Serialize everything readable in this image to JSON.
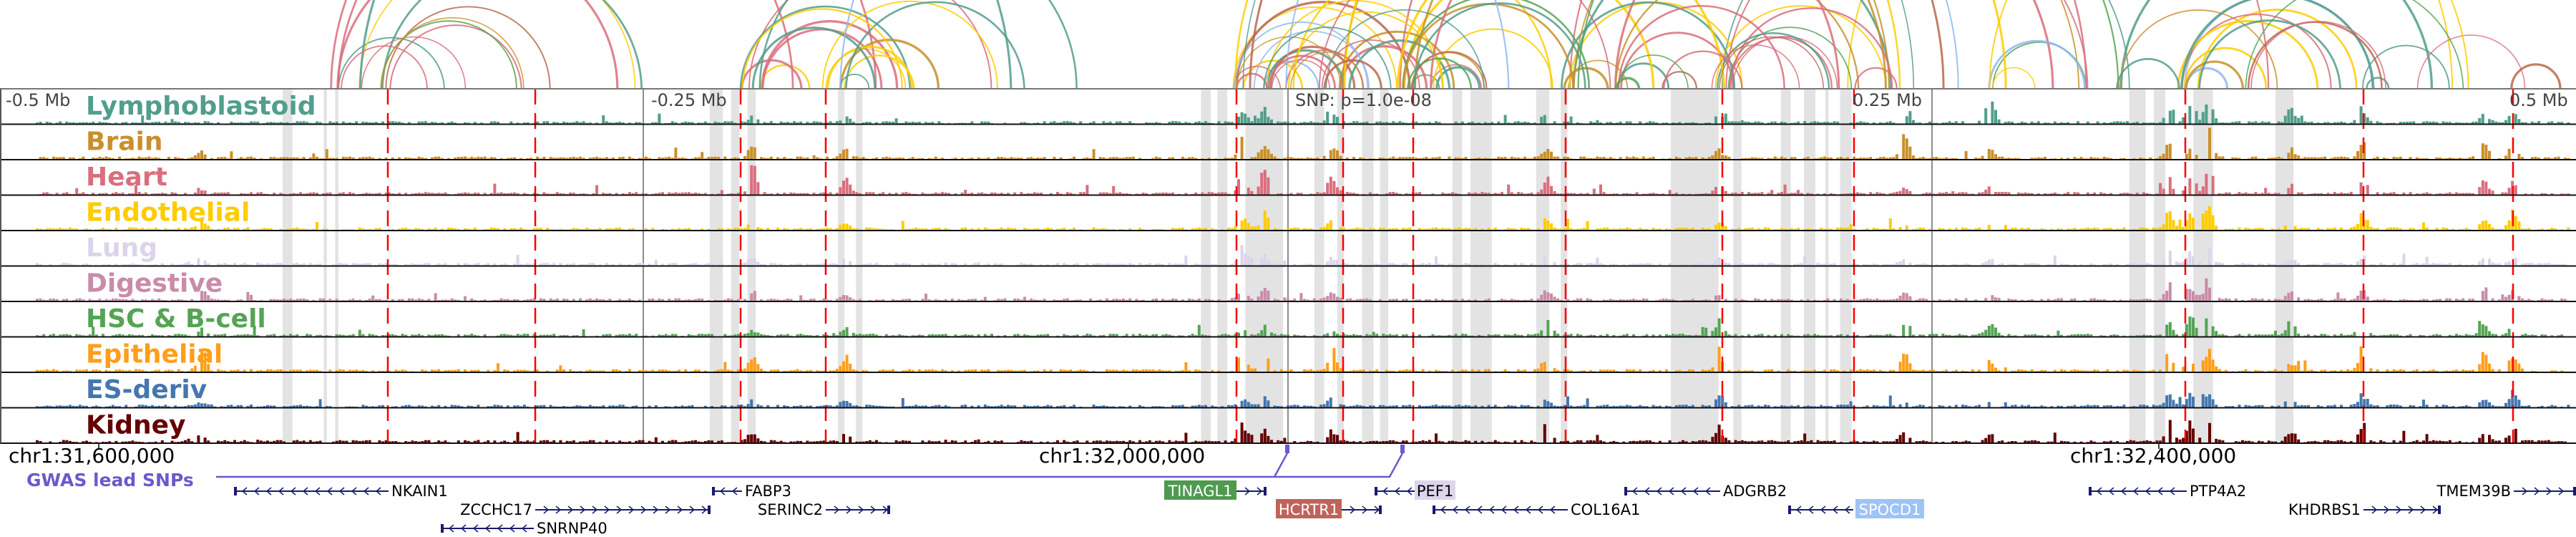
{
  "tracks": [
    {
      "label": "Lymphoblastoid",
      "color": "#529e8c"
    },
    {
      "label": "Brain",
      "color": "#c8902c"
    },
    {
      "label": "Heart",
      "color": "#d96f7d"
    },
    {
      "label": "Endothelial",
      "color": "#ffcc00"
    },
    {
      "label": "Lung",
      "color": "#dcd4ea"
    },
    {
      "label": "Digestive",
      "color": "#c98ca8"
    },
    {
      "label": "HSC & B-cell",
      "color": "#55a455"
    },
    {
      "label": "Epithelial",
      "color": "#ff9e1a"
    },
    {
      "label": "ES-deriv",
      "color": "#4477b0"
    },
    {
      "label": "Kidney",
      "color": "#650000"
    }
  ],
  "scale_labels": {
    "minus_05": "-0.5 Mb",
    "minus_025": "-0.25 Mb",
    "snp": "SNP: p=1.0e-08",
    "plus_025": "0.25 Mb",
    "plus_05": "0.5 Mb"
  },
  "coordinates": [
    "chr1:31,600,000",
    "chr1:32,000,000",
    "chr1:32,400,000"
  ],
  "gwas": {
    "label": "GWAS lead SNPs",
    "color": "#6a5acd"
  },
  "genes": [
    {
      "name": "NKAIN1",
      "strand": "-"
    },
    {
      "name": "ZCCHC17",
      "strand": "+"
    },
    {
      "name": "SNRNP40",
      "strand": "-"
    },
    {
      "name": "FABP3",
      "strand": "-"
    },
    {
      "name": "SERINC2",
      "strand": "+"
    },
    {
      "name": "TINAGL1",
      "strand": "+",
      "highlight": "#4f9a4f",
      "text_color": "#ffffff"
    },
    {
      "name": "HCRTR1",
      "strand": "+",
      "highlight": "#c0635b",
      "text_color": "#ffffff"
    },
    {
      "name": "PEF1",
      "strand": "-",
      "highlight": "#dcd6ec",
      "text_color": "#000000"
    },
    {
      "name": "COL16A1",
      "strand": "-"
    },
    {
      "name": "ADGRB2",
      "strand": "-"
    },
    {
      "name": "SPOCD1",
      "strand": "-",
      "highlight": "#9ec3f5",
      "text_color": "#ffffff"
    },
    {
      "name": "PTP4A2",
      "strand": "-"
    },
    {
      "name": "KHDRBS1",
      "strand": "+"
    },
    {
      "name": "TMEM39B",
      "strand": "+"
    }
  ],
  "colors": {
    "snp_line": "#ff0000",
    "highlight_band": "#e3e3e3",
    "gene_line": "#1a1a6e",
    "arc_extra": "#8fb8f0"
  }
}
